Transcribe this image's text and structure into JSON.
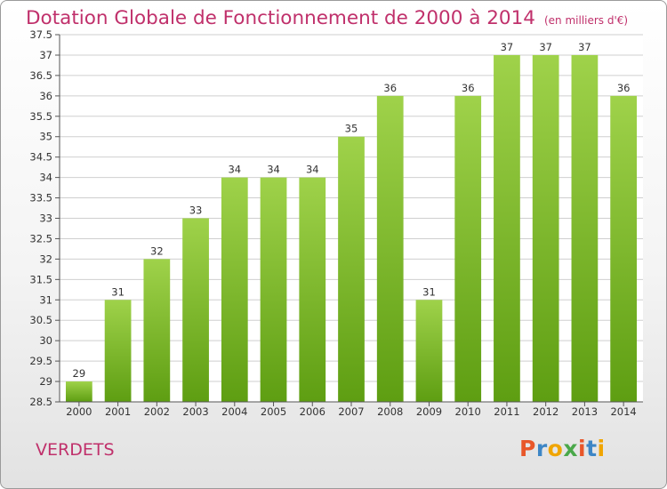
{
  "header": {
    "title": "Dotation Globale de Fonctionnement de 2000 à 2014",
    "subtitle": "(en milliers d'€)"
  },
  "footer": {
    "place": "VERDETS",
    "logo_text": "Proxiti",
    "logo_colors": [
      "#e8572a",
      "#3d86c6",
      "#f0a500",
      "#4aa84a",
      "#e8572a",
      "#3d86c6",
      "#f0a500"
    ]
  },
  "chart_data": {
    "type": "bar",
    "categories": [
      "2000",
      "2001",
      "2002",
      "2003",
      "2004",
      "2005",
      "2006",
      "2007",
      "2008",
      "2009",
      "2010",
      "2011",
      "2012",
      "2013",
      "2014"
    ],
    "values": [
      29,
      31,
      32,
      33,
      34,
      34,
      34,
      35,
      36,
      31,
      36,
      37,
      37,
      37,
      36
    ],
    "data_labels": [
      "29",
      "31",
      "32",
      "33",
      "34",
      "34",
      "34",
      "35",
      "36",
      "31",
      "36",
      "37",
      "37",
      "37",
      "36"
    ],
    "ylim": [
      28.5,
      37.5
    ],
    "yticks": [
      28.5,
      29,
      29.5,
      30,
      30.5,
      31,
      31.5,
      32,
      32.5,
      33,
      33.5,
      34,
      34.5,
      35,
      35.5,
      36,
      36.5,
      37,
      37.5
    ],
    "grid": true,
    "bar_color_top": "#9fd24a",
    "bar_color_bottom": "#5e9e12",
    "grid_color": "#cfcfcf",
    "axis_color": "#555555"
  }
}
